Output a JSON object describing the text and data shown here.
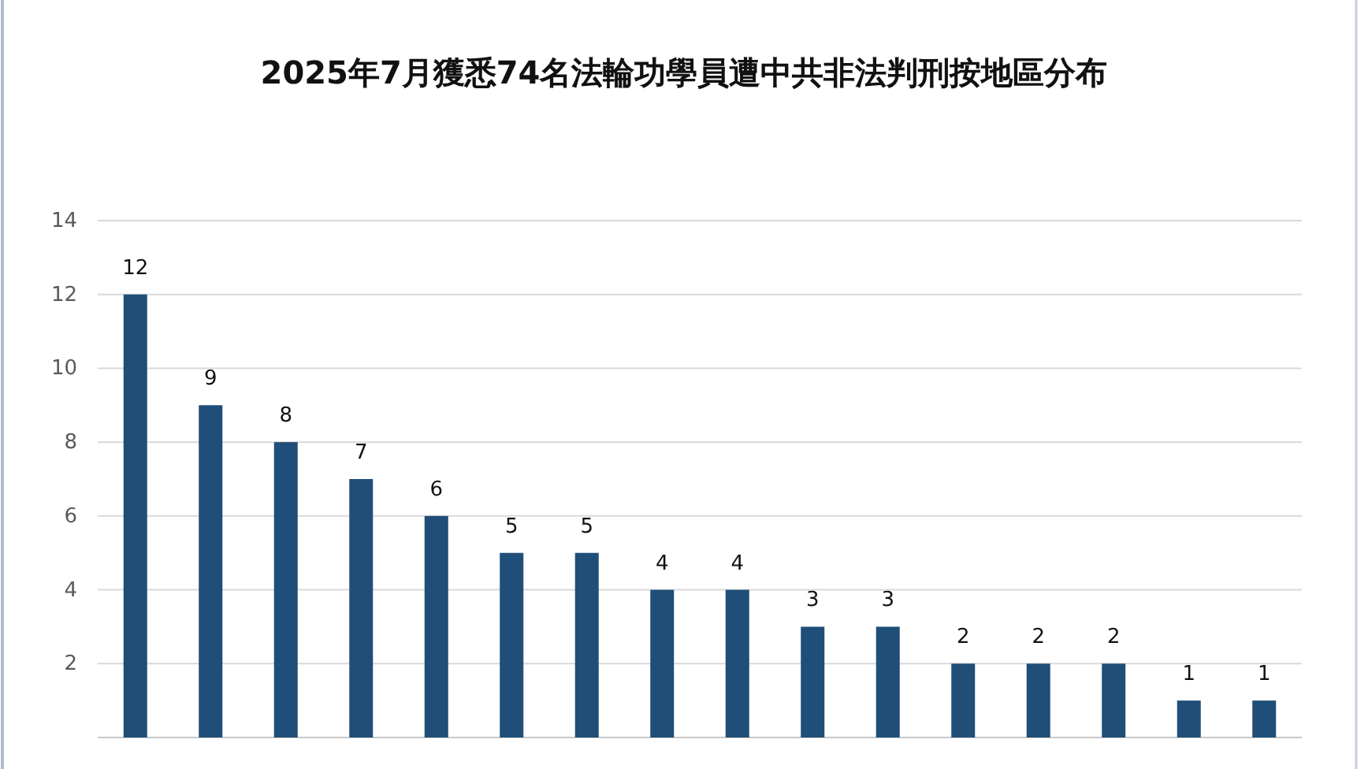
{
  "chart_data": {
    "type": "bar",
    "title": "2025年7月獲悉74名法輪功學員遭中共非法判刑按地區分布",
    "categories": [
      null,
      null,
      null,
      null,
      null,
      null,
      null,
      null,
      null,
      null,
      null,
      null,
      null,
      null,
      null,
      null
    ],
    "values": [
      12,
      9,
      8,
      7,
      6,
      5,
      5,
      4,
      4,
      3,
      3,
      2,
      2,
      2,
      1,
      1
    ],
    "color": "#1f4e78",
    "ylim": [
      0,
      14
    ],
    "yticks": [
      2,
      4,
      6,
      8,
      10,
      12,
      14
    ],
    "grid": "y",
    "data_labels": true
  }
}
